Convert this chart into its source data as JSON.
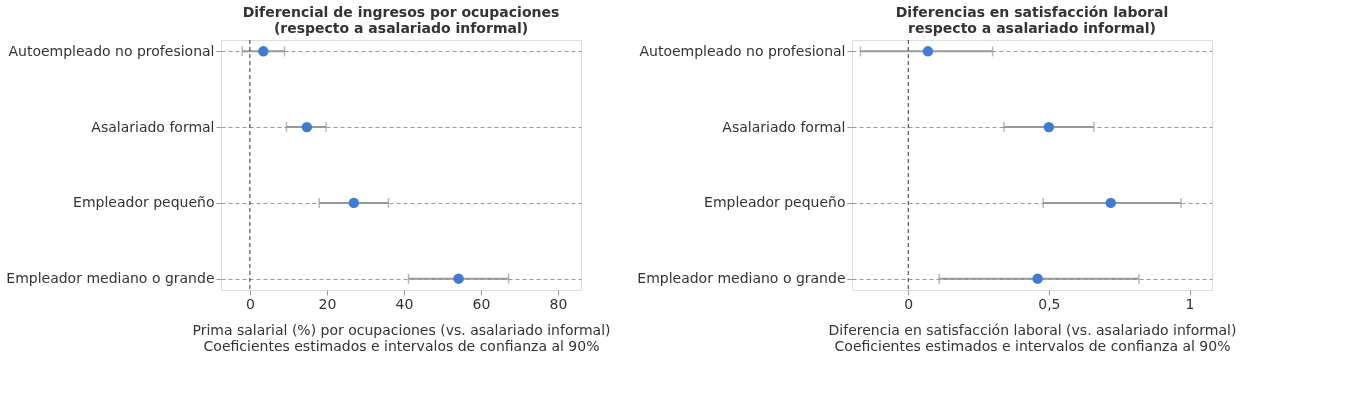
{
  "chart_data": [
    {
      "type": "scatter",
      "title": "Diferencial de ingresos por ocupaciones\n(respecto a asalariado informal)",
      "xlabel": "Prima salarial (%) por ocupaciones (vs. asalariado informal)\nCoeficientes estimados e intervalos de confianza al 90%",
      "orientation": "horizontal",
      "categories": [
        "Autoempleado no profesional",
        "Asalariado formal",
        "Empleador pequeño",
        "Empleador mediano o grande"
      ],
      "values": [
        3.5,
        14.8,
        27,
        54.2
      ],
      "errors": [
        [
          -2,
          9
        ],
        [
          9.5,
          19.8
        ],
        [
          18,
          36
        ],
        [
          41.2,
          67.2
        ]
      ],
      "color": "#3f7bd0",
      "xlim": [
        -7.5,
        86
      ],
      "xticks": [
        0,
        20,
        40,
        60,
        80
      ],
      "grid": "y",
      "marker": "circle",
      "ref_lines": [
        {
          "axis": "x",
          "value": 0,
          "color": "#333333",
          "line_style": "dashed"
        }
      ]
    },
    {
      "type": "scatter",
      "title": "Diferencias en satisfacción laboral\nrespecto a asalariado informal)",
      "xlabel": "Diferencia en satisfacción laboral (vs. asalariado informal)\nCoeficientes estimados e intervalos de confianza al 90%",
      "orientation": "horizontal",
      "categories": [
        "Autoempleado no profesional",
        "Asalariado formal",
        "Empleador pequeño",
        "Empleador mediano o grande"
      ],
      "values": [
        0.07,
        0.5,
        0.72,
        0.46
      ],
      "errors": [
        [
          -0.17,
          0.3
        ],
        [
          0.34,
          0.66
        ],
        [
          0.48,
          0.97
        ],
        [
          0.11,
          0.82
        ]
      ],
      "color": "#3f7bd0",
      "xlim": [
        -0.2,
        1.08
      ],
      "xticks": [
        0,
        {
          "value": 0.5,
          "label": "0,5"
        },
        1
      ],
      "grid": "y",
      "marker": "circle",
      "ref_lines": [
        {
          "axis": "x",
          "value": 0,
          "color": "#333333",
          "line_style": "dashed"
        }
      ]
    }
  ]
}
